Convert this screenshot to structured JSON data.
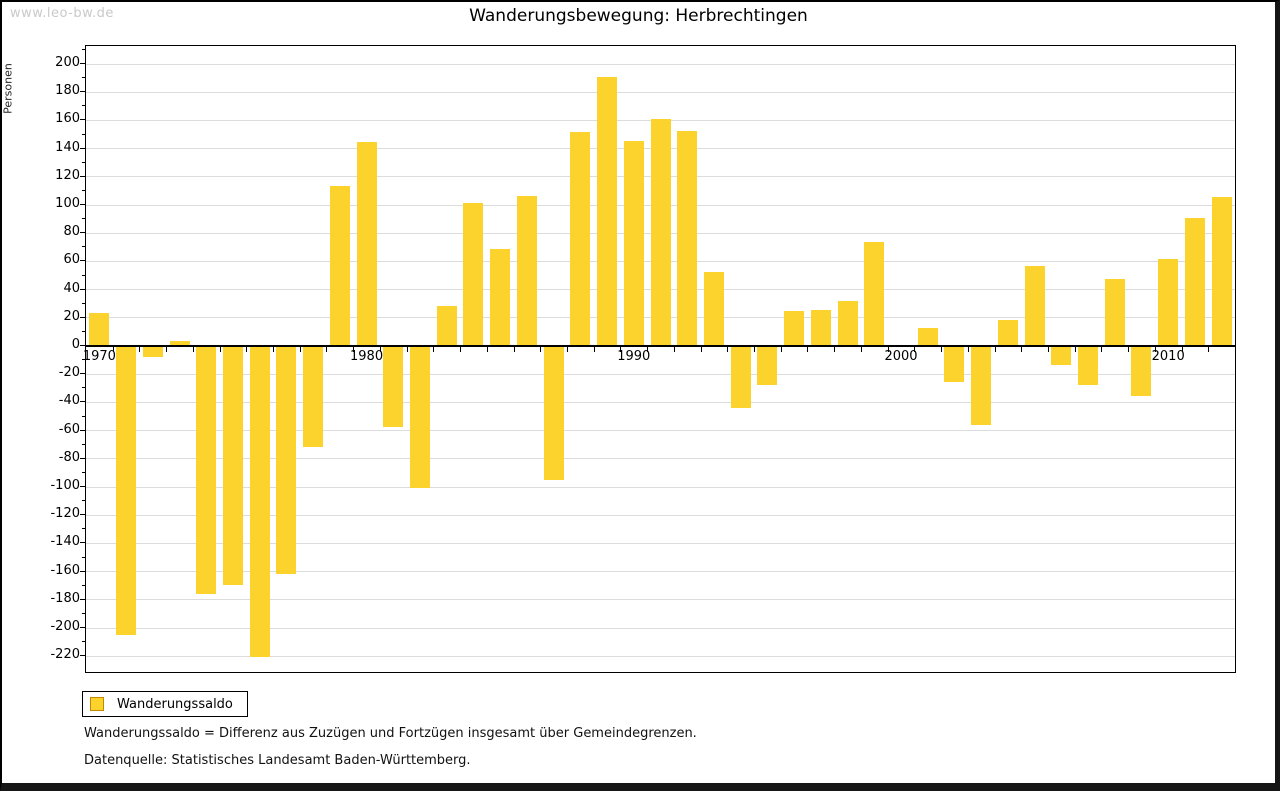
{
  "watermark": "www.leo-bw.de",
  "title": "Wanderungsbewegung: Herbrechtingen",
  "y_axis_title": "Personen",
  "legend": {
    "label": "Wanderungssaldo"
  },
  "footnotes": {
    "definition": "Wanderungssaldo = Differenz aus Zuzügen und Fortzügen insgesamt über Gemeindegrenzen.",
    "source": "Datenquelle: Statistisches Landesamt Baden-Württemberg."
  },
  "colors": {
    "bar": "#FCD32D",
    "legend_swatch_border": "#C28A00",
    "grid": "#DCDCDC",
    "axis": "#000000",
    "watermark": "#C9C9C9"
  },
  "chart_data": {
    "type": "bar",
    "title": "Wanderungsbewegung: Herbrechtingen",
    "xlabel": "",
    "ylabel": "Personen",
    "series_name": "Wanderungssaldo",
    "x": [
      1970,
      1971,
      1972,
      1973,
      1974,
      1975,
      1976,
      1977,
      1978,
      1979,
      1980,
      1981,
      1982,
      1983,
      1984,
      1985,
      1986,
      1987,
      1988,
      1989,
      1990,
      1991,
      1992,
      1993,
      1994,
      1995,
      1996,
      1997,
      1998,
      1999,
      2000,
      2001,
      2002,
      2003,
      2004,
      2005,
      2006,
      2007,
      2008,
      2009,
      2010,
      2011,
      2012
    ],
    "values": [
      23,
      -204,
      -7,
      3,
      -175,
      -169,
      -220,
      -161,
      -71,
      113,
      144,
      -57,
      -100,
      28,
      101,
      68,
      106,
      -94,
      151,
      190,
      145,
      160,
      152,
      52,
      -43,
      -27,
      24,
      25,
      31,
      73,
      0,
      12,
      -25,
      -55,
      18,
      56,
      -13,
      -27,
      47,
      -35,
      61,
      90,
      105
    ],
    "ylim": [
      -220,
      200
    ],
    "ytick_step": 20,
    "xtick_labels": [
      1970,
      1980,
      1990,
      2000,
      2010
    ],
    "grid": true,
    "legend_position": "bottom-left"
  }
}
